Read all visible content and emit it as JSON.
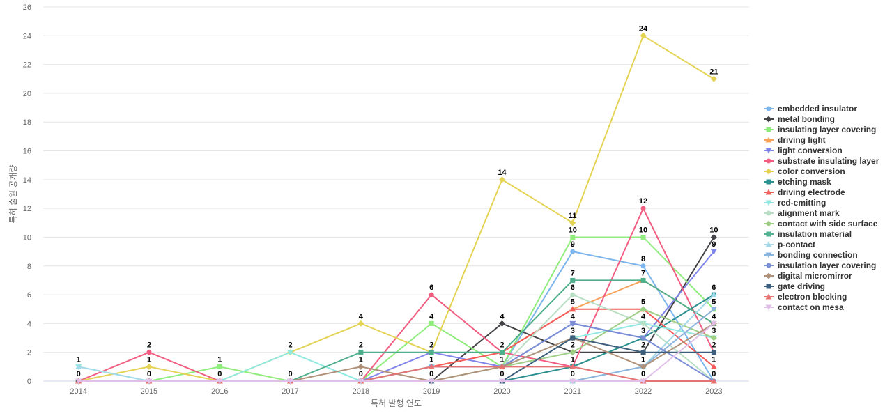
{
  "chart_data": {
    "type": "line",
    "title": "",
    "xlabel": "특허 발행 연도",
    "ylabel": "특허 출원 공개량",
    "ylim": [
      0,
      26
    ],
    "ytick_step": 2,
    "grid": true,
    "legend_position": "right",
    "categories": [
      "2014",
      "2015",
      "2016",
      "2017",
      "2018",
      "2019",
      "2020",
      "2021",
      "2022",
      "2023"
    ],
    "series": [
      {
        "name": "embedded insulator",
        "color": "#7cb5ec",
        "marker": "circle",
        "values": [
          0,
          0,
          0,
          0,
          0,
          1,
          1,
          9,
          8,
          0
        ]
      },
      {
        "name": "metal bonding",
        "color": "#434348",
        "marker": "diamond",
        "values": [
          0,
          0,
          0,
          0,
          0,
          0,
          4,
          2,
          2,
          10
        ]
      },
      {
        "name": "insulating layer covering",
        "color": "#90ed7d",
        "marker": "square",
        "values": [
          0,
          0,
          1,
          0,
          0,
          4,
          1,
          10,
          10,
          5
        ]
      },
      {
        "name": "driving light",
        "color": "#f7a35c",
        "marker": "triangle",
        "values": [
          0,
          0,
          0,
          0,
          0,
          1,
          2,
          5,
          7,
          4
        ]
      },
      {
        "name": "light conversion",
        "color": "#8085e9",
        "marker": "triangle-down",
        "values": [
          0,
          0,
          0,
          0,
          0,
          2,
          1,
          4,
          3,
          9
        ]
      },
      {
        "name": "substrate insulating layer",
        "color": "#f15c80",
        "marker": "circle",
        "values": [
          0,
          2,
          0,
          0,
          0,
          6,
          2,
          1,
          12,
          2
        ]
      },
      {
        "name": "color conversion",
        "color": "#e4d354",
        "marker": "diamond",
        "values": [
          0,
          1,
          0,
          2,
          4,
          2,
          14,
          11,
          24,
          21
        ]
      },
      {
        "name": "etching mask",
        "color": "#2b908f",
        "marker": "square",
        "values": [
          0,
          0,
          0,
          0,
          0,
          0,
          0,
          1,
          3,
          6
        ]
      },
      {
        "name": "driving electrode",
        "color": "#f45b5b",
        "marker": "triangle",
        "values": [
          0,
          0,
          0,
          0,
          0,
          1,
          2,
          5,
          5,
          1
        ]
      },
      {
        "name": "red-emitting",
        "color": "#91e8e1",
        "marker": "triangle-down",
        "values": [
          1,
          0,
          0,
          2,
          0,
          1,
          1,
          3,
          4,
          3
        ]
      },
      {
        "name": "alignment mark",
        "color": "#b8dfc4",
        "marker": "circle",
        "values": [
          0,
          0,
          0,
          0,
          0,
          0,
          1,
          6,
          4,
          0
        ]
      },
      {
        "name": "contact with side surface",
        "color": "#9fcf86",
        "marker": "diamond",
        "values": [
          0,
          0,
          0,
          0,
          0,
          0,
          1,
          2,
          5,
          3
        ]
      },
      {
        "name": "insulation material",
        "color": "#4fae8b",
        "marker": "square",
        "values": [
          0,
          0,
          0,
          0,
          2,
          2,
          2,
          7,
          7,
          4
        ]
      },
      {
        "name": "p-contact",
        "color": "#a3d9e8",
        "marker": "triangle",
        "values": [
          1,
          0,
          0,
          0,
          0,
          0,
          0,
          0,
          1,
          6
        ]
      },
      {
        "name": "bonding connection",
        "color": "#8db4dd",
        "marker": "triangle-down",
        "values": [
          0,
          0,
          0,
          0,
          0,
          0,
          0,
          0,
          1,
          5
        ]
      },
      {
        "name": "insulation layer covering",
        "color": "#7b8fd6",
        "marker": "circle",
        "values": [
          0,
          0,
          0,
          0,
          0,
          1,
          1,
          4,
          3,
          0
        ]
      },
      {
        "name": "digital micromirror",
        "color": "#b0917a",
        "marker": "diamond",
        "values": [
          0,
          0,
          0,
          0,
          1,
          0,
          1,
          3,
          1,
          4
        ]
      },
      {
        "name": "gate driving",
        "color": "#3d5f7c",
        "marker": "square",
        "values": [
          0,
          0,
          0,
          0,
          0,
          0,
          0,
          3,
          2,
          2
        ]
      },
      {
        "name": "electron blocking",
        "color": "#e57373",
        "marker": "triangle",
        "values": [
          0,
          0,
          0,
          0,
          0,
          1,
          1,
          1,
          0,
          0
        ]
      },
      {
        "name": "contact on mesa",
        "color": "#e0c0e8",
        "marker": "triangle-down",
        "values": [
          0,
          0,
          0,
          0,
          0,
          0,
          0,
          0,
          0,
          4
        ]
      }
    ],
    "data_labels": [
      {
        "x": "2014",
        "value": 1
      },
      {
        "x": "2014",
        "value": 0
      },
      {
        "x": "2015",
        "value": 2
      },
      {
        "x": "2015",
        "value": 1
      },
      {
        "x": "2015",
        "value": 0
      },
      {
        "x": "2016",
        "value": 1
      },
      {
        "x": "2016",
        "value": 0
      },
      {
        "x": "2017",
        "value": 2
      },
      {
        "x": "2017",
        "value": 0
      },
      {
        "x": "2018",
        "value": 4
      },
      {
        "x": "2018",
        "value": 2
      },
      {
        "x": "2018",
        "value": 1
      },
      {
        "x": "2018",
        "value": 0
      },
      {
        "x": "2019",
        "value": 6
      },
      {
        "x": "2019",
        "value": 4
      },
      {
        "x": "2019",
        "value": 2
      },
      {
        "x": "2019",
        "value": 1
      },
      {
        "x": "2019",
        "value": 0
      },
      {
        "x": "2020",
        "value": 14
      },
      {
        "x": "2020",
        "value": 4
      },
      {
        "x": "2020",
        "value": 2
      },
      {
        "x": "2020",
        "value": 1
      },
      {
        "x": "2020",
        "value": 0
      },
      {
        "x": "2021",
        "value": 11
      },
      {
        "x": "2021",
        "value": 10
      },
      {
        "x": "2021",
        "value": 9
      },
      {
        "x": "2021",
        "value": 7
      },
      {
        "x": "2021",
        "value": 6
      },
      {
        "x": "2021",
        "value": 5
      },
      {
        "x": "2021",
        "value": 4
      },
      {
        "x": "2021",
        "value": 3
      },
      {
        "x": "2021",
        "value": 2
      },
      {
        "x": "2021",
        "value": 1
      },
      {
        "x": "2021",
        "value": 0
      },
      {
        "x": "2022",
        "value": 24
      },
      {
        "x": "2022",
        "value": 12
      },
      {
        "x": "2022",
        "value": 10
      },
      {
        "x": "2022",
        "value": 8
      },
      {
        "x": "2022",
        "value": 7
      },
      {
        "x": "2022",
        "value": 5
      },
      {
        "x": "2022",
        "value": 4
      },
      {
        "x": "2022",
        "value": 3
      },
      {
        "x": "2022",
        "value": 2
      },
      {
        "x": "2022",
        "value": 1
      },
      {
        "x": "2022",
        "value": 0
      },
      {
        "x": "2023",
        "value": 21
      },
      {
        "x": "2023",
        "value": 10
      },
      {
        "x": "2023",
        "value": 9
      },
      {
        "x": "2023",
        "value": 6
      },
      {
        "x": "2023",
        "value": 5
      },
      {
        "x": "2023",
        "value": 4
      },
      {
        "x": "2023",
        "value": 3
      },
      {
        "x": "2023",
        "value": 2
      },
      {
        "x": "2023",
        "value": 1
      },
      {
        "x": "2023",
        "value": 0
      }
    ]
  }
}
